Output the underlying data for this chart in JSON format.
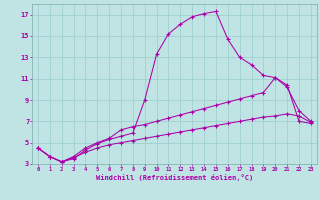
{
  "xlabel": "Windchill (Refroidissement éolien,°C)",
  "bg_color": "#c0e4e4",
  "line_color": "#aa00aa",
  "grid_color": "#99cccc",
  "xlim": [
    -0.5,
    23.5
  ],
  "ylim": [
    3,
    18
  ],
  "xticks": [
    0,
    1,
    2,
    3,
    4,
    5,
    6,
    7,
    8,
    9,
    10,
    11,
    12,
    13,
    14,
    15,
    16,
    17,
    18,
    19,
    20,
    21,
    22,
    23
  ],
  "yticks": [
    3,
    5,
    7,
    9,
    11,
    13,
    15,
    17
  ],
  "line1_x": [
    0,
    1,
    2,
    3,
    4,
    5,
    6,
    7,
    8,
    9,
    10,
    11,
    12,
    13,
    14,
    15,
    16,
    17,
    18,
    19,
    20,
    21,
    22,
    23
  ],
  "line1_y": [
    4.5,
    3.7,
    3.2,
    3.5,
    4.3,
    4.9,
    5.3,
    5.6,
    5.9,
    9.0,
    13.3,
    15.2,
    16.1,
    16.8,
    17.1,
    17.3,
    14.7,
    13.0,
    12.3,
    11.3,
    11.1,
    10.4,
    7.0,
    6.8
  ],
  "line2_x": [
    0,
    1,
    2,
    3,
    4,
    5,
    6,
    7,
    8,
    9,
    10,
    11,
    12,
    13,
    14,
    15,
    16,
    17,
    18,
    19,
    20,
    21,
    22,
    23
  ],
  "line2_y": [
    4.5,
    3.7,
    3.2,
    3.7,
    4.5,
    5.0,
    5.4,
    6.2,
    6.5,
    6.7,
    7.0,
    7.3,
    7.6,
    7.9,
    8.2,
    8.5,
    8.8,
    9.1,
    9.4,
    9.7,
    11.1,
    10.2,
    8.0,
    7.0
  ],
  "line3_x": [
    0,
    1,
    2,
    3,
    4,
    5,
    6,
    7,
    8,
    9,
    10,
    11,
    12,
    13,
    14,
    15,
    16,
    17,
    18,
    19,
    20,
    21,
    22,
    23
  ],
  "line3_y": [
    4.5,
    3.7,
    3.2,
    3.6,
    4.1,
    4.5,
    4.8,
    5.0,
    5.2,
    5.4,
    5.6,
    5.8,
    6.0,
    6.2,
    6.4,
    6.6,
    6.8,
    7.0,
    7.2,
    7.4,
    7.5,
    7.7,
    7.5,
    6.9
  ]
}
